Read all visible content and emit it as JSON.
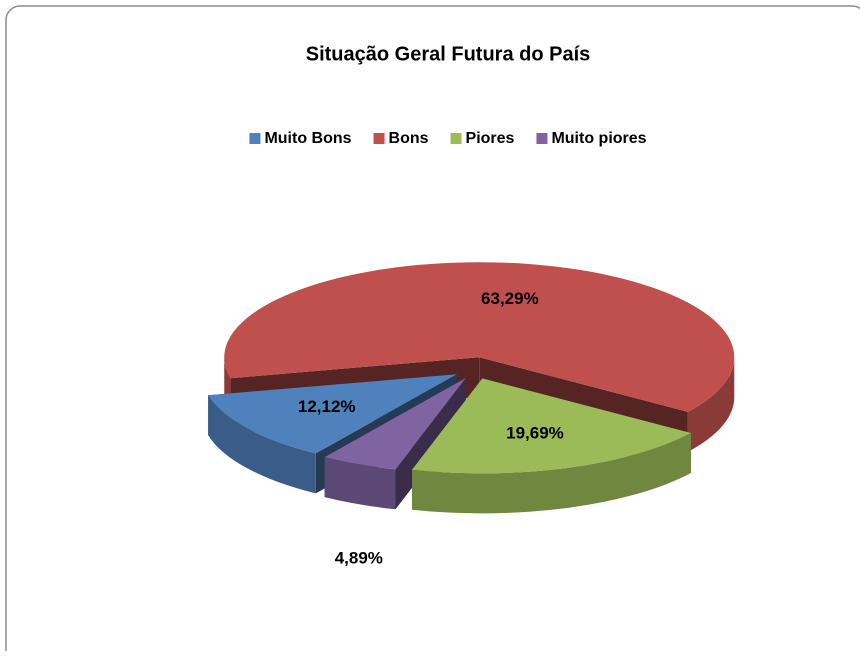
{
  "chart_data": {
    "type": "pie3d",
    "title": "Situação Geral Futura do País",
    "categories": [
      "Muito Bons",
      "Bons",
      "Piores",
      "Muito piores"
    ],
    "values": [
      12.12,
      63.29,
      19.69,
      4.89
    ],
    "value_labels": [
      "12,12%",
      "63,29%",
      "19,69%",
      "4,89%"
    ],
    "colors": [
      "#4f81bd",
      "#c0504d",
      "#9bbb59",
      "#8064a2"
    ],
    "legend": "top"
  }
}
